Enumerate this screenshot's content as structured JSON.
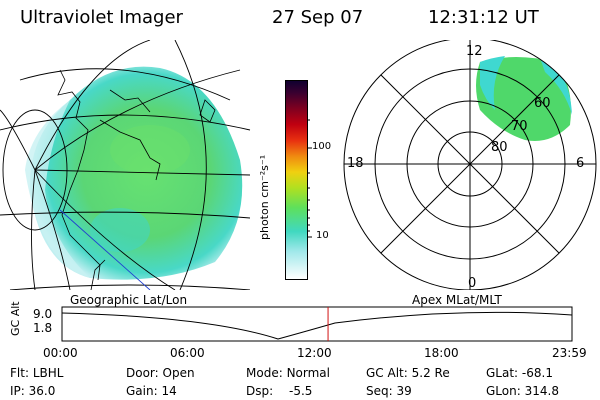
{
  "header": {
    "instrument": "Ultraviolet Imager",
    "date": "27 Sep 07",
    "time": "12:31:12 UT"
  },
  "colorbar": {
    "unit_label": "photon cm⁻²s⁻¹",
    "ticks": [
      "100",
      "10"
    ]
  },
  "polar": {
    "mlt_labels": {
      "top": "12",
      "left": "18",
      "right": "6",
      "bottom": "0"
    },
    "lat_labels": [
      "60",
      "70",
      "80"
    ]
  },
  "timeline": {
    "left_title": "Geographic Lat/Lon",
    "right_title": "Apex MLat/MLT",
    "y_axis_label": "GC Alt",
    "y_ticks": [
      "9.0",
      "1.8"
    ],
    "x_ticks": [
      "00:00",
      "06:00",
      "12:00",
      "18:00",
      "23:59"
    ],
    "current_time_hours": 12.52
  },
  "status": {
    "col1": [
      {
        "label": "Flt:",
        "value": "LBHL"
      },
      {
        "label": "IP:",
        "value": "36.0"
      }
    ],
    "col2": [
      {
        "label": "Door:",
        "value": "Open"
      },
      {
        "label": "Gain:",
        "value": "14"
      }
    ],
    "col3": [
      {
        "label": "Mode:",
        "value": "Normal"
      },
      {
        "label": "Dsp:",
        "value": "-5.5"
      }
    ],
    "col4": [
      {
        "label": "GC Alt:",
        "value": "5.2 Re"
      },
      {
        "label": "Seq:",
        "value": "39"
      }
    ],
    "col5": [
      {
        "label": "GLat:",
        "value": "-68.1"
      },
      {
        "label": "GLon:",
        "value": "314.8"
      }
    ]
  },
  "colors": {
    "aurora_green": "#4fd86a",
    "aurora_cyan": "#3fd8d0",
    "marker_red": "#d01010"
  }
}
